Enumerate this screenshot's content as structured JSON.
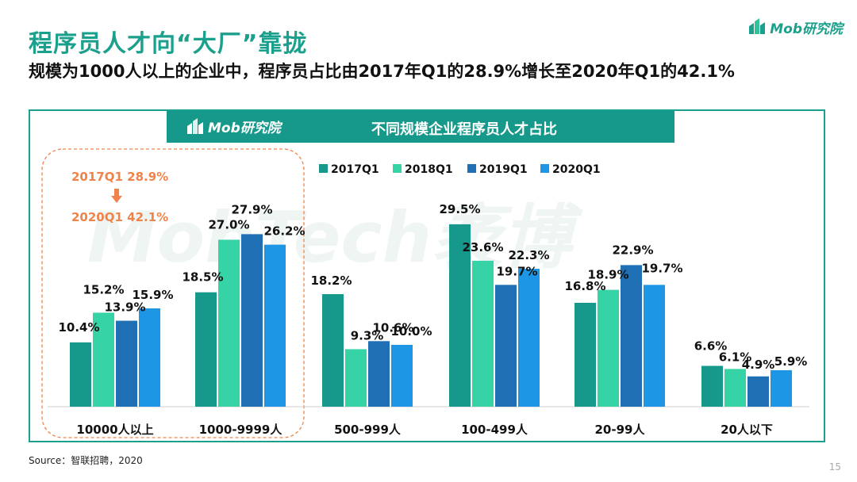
{
  "page": {
    "title": "程序员人才向“大厂”靠拢",
    "subtitle": "规模为1000人以上的企业中，程序员占比由2017年Q1的28.9%增长至2020年Q1的42.1%",
    "logo_text": "Mob研究院",
    "banner_logo_text": "Mob研究院",
    "watermark": "MobTech袤博",
    "source": "Source：智联招聘，2020",
    "page_number": "15"
  },
  "colors": {
    "brand": "#1aa08c",
    "annotation": "#f0834a",
    "series": [
      "#16998a",
      "#35d3a5",
      "#1f6fb5",
      "#1e96e6"
    ]
  },
  "chart_data": {
    "type": "bar",
    "title": "不同规模企业程序员人才占比",
    "categories": [
      "10000人以上",
      "1000-9999人",
      "500-999人",
      "100-499人",
      "20-99人",
      "20人以下"
    ],
    "series": [
      {
        "name": "2017Q1",
        "values": [
          10.4,
          18.5,
          18.2,
          29.5,
          16.8,
          6.6
        ],
        "labels": [
          "10.4%",
          "18.5%",
          "18.2%",
          "29.5%",
          "16.8%",
          "6.6%"
        ]
      },
      {
        "name": "2018Q1",
        "values": [
          15.2,
          27.0,
          9.3,
          23.6,
          18.9,
          6.1
        ],
        "labels": [
          "15.2%",
          "27.0%",
          "9.3%",
          "23.6%",
          "18.9%",
          "6.1%"
        ]
      },
      {
        "name": "2019Q1",
        "values": [
          13.9,
          27.9,
          10.6,
          19.7,
          22.9,
          4.9
        ],
        "labels": [
          "13.9%",
          "27.9%",
          "10.6%",
          "19.7%",
          "22.9%",
          "4.9%"
        ]
      },
      {
        "name": "2020Q1",
        "values": [
          15.9,
          26.2,
          10.0,
          22.3,
          19.7,
          5.9
        ],
        "labels": [
          "15.9%",
          "26.2%",
          "10.0%",
          "22.3%",
          "19.7%",
          "5.9%"
        ]
      }
    ],
    "ylim": [
      0,
      40
    ],
    "legend_position": "top",
    "annotation": {
      "from": "2017Q1  28.9%",
      "to": "2020Q1  42.1%",
      "arrow": "down-arrow-icon"
    },
    "highlight_categories": [
      "10000人以上",
      "1000-9999人"
    ]
  }
}
